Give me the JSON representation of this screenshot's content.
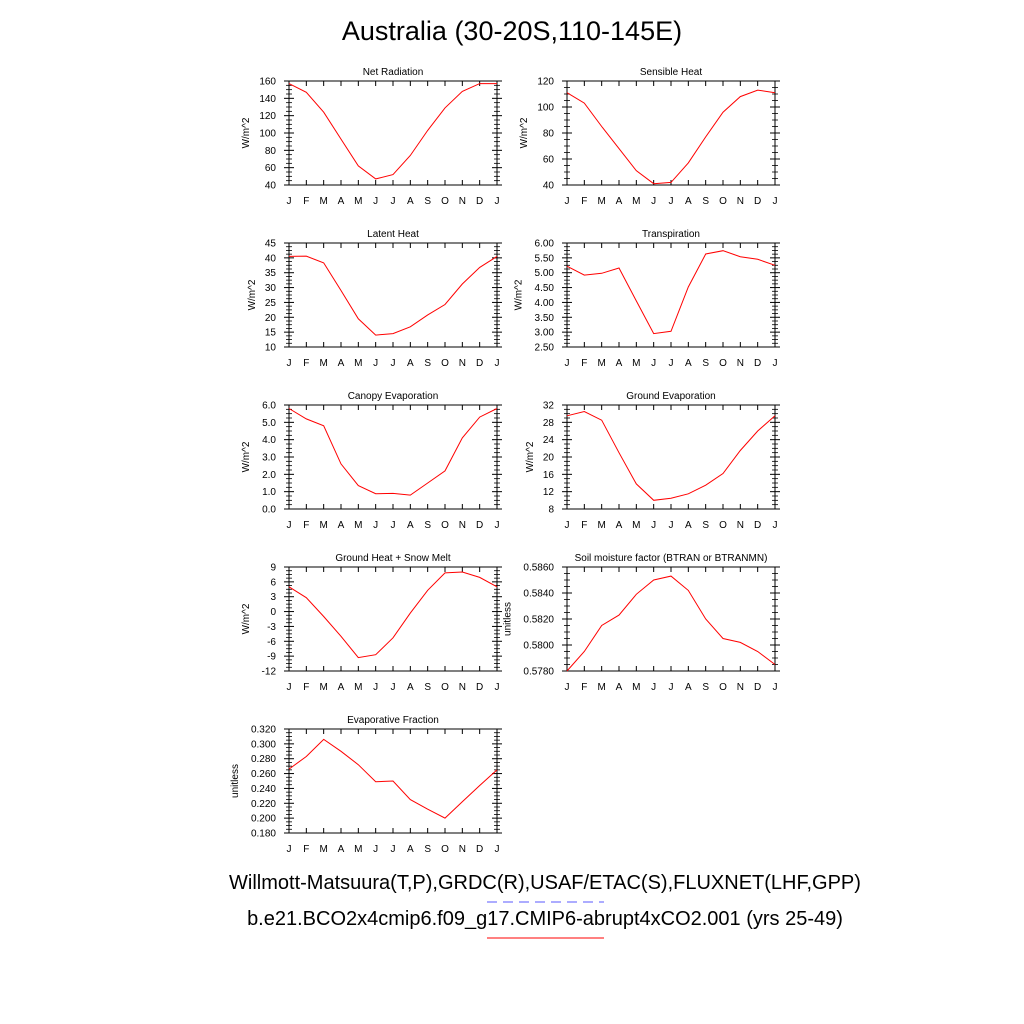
{
  "title": "Australia (30-20S,110-145E)",
  "legend": {
    "obs_label": "Willmott-Matsuura(T,P),GRDC(R),USAF/ETAC(S),FLUXNET(LHF,GPP)",
    "obs_color": "#5a5aff",
    "model_label": "b.e21.BCO2x4cmip6.f09_g17.CMIP6-abrupt4xCO2.001 (yrs 25-49)",
    "model_color": "#ff0000"
  },
  "chart_data": [
    {
      "type": "line",
      "title": "Net Radiation",
      "ylabel": "W/m^2",
      "xlabel": "",
      "categories": [
        "J",
        "F",
        "M",
        "A",
        "M",
        "J",
        "J",
        "A",
        "S",
        "O",
        "N",
        "D",
        "J"
      ],
      "yticks": [
        "40",
        "60",
        "80",
        "100",
        "120",
        "140",
        "160"
      ],
      "ylim": [
        40,
        160
      ],
      "series": [
        {
          "values": [
            157,
            147,
            124,
            93,
            62,
            47,
            52,
            74,
            103,
            129,
            148,
            157,
            157
          ],
          "color": "#ff0000"
        }
      ]
    },
    {
      "type": "line",
      "title": "Sensible Heat",
      "ylabel": "W/m^2",
      "xlabel": "",
      "categories": [
        "J",
        "F",
        "M",
        "A",
        "M",
        "J",
        "J",
        "A",
        "S",
        "O",
        "N",
        "D",
        "J"
      ],
      "yticks": [
        "40",
        "60",
        "80",
        "100",
        "120"
      ],
      "ylim": [
        40,
        120
      ],
      "series": [
        {
          "values": [
            111,
            103,
            85,
            68,
            51,
            41,
            42,
            57,
            77,
            96,
            108,
            113,
            111
          ],
          "color": "#ff0000"
        }
      ]
    },
    {
      "type": "line",
      "title": "Latent Heat",
      "ylabel": "W/m^2",
      "xlabel": "",
      "categories": [
        "J",
        "F",
        "M",
        "A",
        "M",
        "J",
        "J",
        "A",
        "S",
        "O",
        "N",
        "D",
        "J"
      ],
      "yticks": [
        "10",
        "15",
        "20",
        "25",
        "30",
        "35",
        "40",
        "45"
      ],
      "ylim": [
        10,
        45
      ],
      "series": [
        {
          "values": [
            40.5,
            40.6,
            38.3,
            29,
            19.5,
            14,
            14.5,
            16.8,
            20.8,
            24.3,
            31.2,
            36.8,
            40.5
          ],
          "color": "#ff0000"
        }
      ]
    },
    {
      "type": "line",
      "title": "Transpiration",
      "ylabel": "W/m^2",
      "xlabel": "",
      "categories": [
        "J",
        "F",
        "M",
        "A",
        "M",
        "J",
        "J",
        "A",
        "S",
        "O",
        "N",
        "D",
        "J"
      ],
      "yticks": [
        "2.50",
        "3.00",
        "3.50",
        "4.00",
        "4.50",
        "5.00",
        "5.50",
        "6.00"
      ],
      "ylim": [
        2.5,
        6.0
      ],
      "series": [
        {
          "values": [
            5.22,
            4.92,
            4.98,
            5.16,
            4.05,
            2.95,
            3.03,
            4.52,
            5.63,
            5.74,
            5.54,
            5.45,
            5.25
          ],
          "color": "#ff0000"
        }
      ]
    },
    {
      "type": "line",
      "title": "Canopy Evaporation",
      "ylabel": "W/m^2",
      "xlabel": "",
      "categories": [
        "J",
        "F",
        "M",
        "A",
        "M",
        "J",
        "J",
        "A",
        "S",
        "O",
        "N",
        "D",
        "J"
      ],
      "yticks": [
        "0.0",
        "1.0",
        "2.0",
        "3.0",
        "4.0",
        "5.0",
        "6.0"
      ],
      "ylim": [
        0,
        6
      ],
      "series": [
        {
          "values": [
            5.8,
            5.2,
            4.8,
            2.6,
            1.35,
            0.88,
            0.9,
            0.8,
            1.5,
            2.2,
            4.1,
            5.3,
            5.8
          ],
          "color": "#ff0000"
        }
      ]
    },
    {
      "type": "line",
      "title": "Ground Evaporation",
      "ylabel": "W/m^2",
      "xlabel": "",
      "categories": [
        "J",
        "F",
        "M",
        "A",
        "M",
        "J",
        "J",
        "A",
        "S",
        "O",
        "N",
        "D",
        "J"
      ],
      "yticks": [
        "8",
        "12",
        "16",
        "20",
        "24",
        "28",
        "32"
      ],
      "ylim": [
        8,
        32
      ],
      "series": [
        {
          "values": [
            29.5,
            30.5,
            28.5,
            21,
            13.8,
            10,
            10.5,
            11.5,
            13.5,
            16.2,
            21.5,
            26,
            29.5
          ],
          "color": "#ff0000"
        }
      ]
    },
    {
      "type": "line",
      "title": "Ground Heat + Snow Melt",
      "ylabel": "W/m^2",
      "xlabel": "",
      "categories": [
        "J",
        "F",
        "M",
        "A",
        "M",
        "J",
        "J",
        "A",
        "S",
        "O",
        "N",
        "D",
        "J"
      ],
      "yticks": [
        "-12",
        "-9",
        "-6",
        "-3",
        "0",
        "3",
        "6",
        "9"
      ],
      "ylim": [
        -12,
        9
      ],
      "series": [
        {
          "values": [
            5,
            2.8,
            -1,
            -5,
            -9.3,
            -8.7,
            -5.3,
            -0.3,
            4.3,
            7.8,
            8,
            6.9,
            5
          ],
          "color": "#ff0000"
        }
      ]
    },
    {
      "type": "line",
      "title": "Soil moisture factor (BTRAN or BTRANMN)",
      "ylabel": "unitless",
      "xlabel": "",
      "categories": [
        "J",
        "F",
        "M",
        "A",
        "M",
        "J",
        "J",
        "A",
        "S",
        "O",
        "N",
        "D",
        "J"
      ],
      "yticks": [
        "0.5780",
        "0.5800",
        "0.5820",
        "0.5840",
        "0.5860"
      ],
      "ylim": [
        0.578,
        0.586
      ],
      "series": [
        {
          "values": [
            0.578,
            0.5795,
            0.5815,
            0.5823,
            0.5839,
            0.585,
            0.5853,
            0.5842,
            0.582,
            0.5805,
            0.5802,
            0.5795,
            0.5785
          ],
          "color": "#ff0000"
        }
      ]
    },
    {
      "type": "line",
      "title": "Evaporative Fraction",
      "ylabel": "unitless",
      "xlabel": "",
      "categories": [
        "J",
        "F",
        "M",
        "A",
        "M",
        "J",
        "J",
        "A",
        "S",
        "O",
        "N",
        "D",
        "J"
      ],
      "yticks": [
        "0.180",
        "0.200",
        "0.220",
        "0.240",
        "0.260",
        "0.280",
        "0.300",
        "0.320"
      ],
      "ylim": [
        0.18,
        0.32
      ],
      "series": [
        {
          "values": [
            0.266,
            0.283,
            0.306,
            0.29,
            0.272,
            0.249,
            0.25,
            0.225,
            0.212,
            0.2,
            0.222,
            0.244,
            0.265
          ],
          "color": "#ff0000"
        }
      ]
    }
  ]
}
